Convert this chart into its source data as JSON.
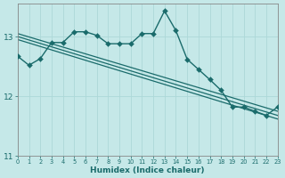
{
  "xlabel": "Humidex (Indice chaleur)",
  "bg_color": "#c5e8e8",
  "grid_color": "#add8d8",
  "line_color": "#1a6b6b",
  "xlim": [
    0,
    23
  ],
  "ylim": [
    11.0,
    13.55
  ],
  "yticks": [
    11,
    12,
    13
  ],
  "xticks": [
    0,
    1,
    2,
    3,
    4,
    5,
    6,
    7,
    8,
    9,
    10,
    11,
    12,
    13,
    14,
    15,
    16,
    17,
    18,
    19,
    20,
    21,
    22,
    23
  ],
  "curve": [
    12.67,
    12.52,
    12.63,
    12.9,
    12.9,
    13.08,
    13.08,
    13.02,
    12.88,
    12.88,
    12.88,
    13.05,
    13.05,
    13.43,
    13.1,
    12.62,
    12.45,
    12.28,
    12.1,
    11.82,
    11.82,
    11.75,
    11.68,
    11.82
  ],
  "reg_lines": [
    [
      [
        0,
        23
      ],
      [
        13.05,
        11.75
      ]
    ],
    [
      [
        0,
        23
      ],
      [
        13.0,
        11.68
      ]
    ],
    [
      [
        0,
        23
      ],
      [
        12.95,
        11.62
      ]
    ]
  ],
  "marker_size": 3.0,
  "lw_curve": 1.0,
  "lw_reg": 0.9
}
